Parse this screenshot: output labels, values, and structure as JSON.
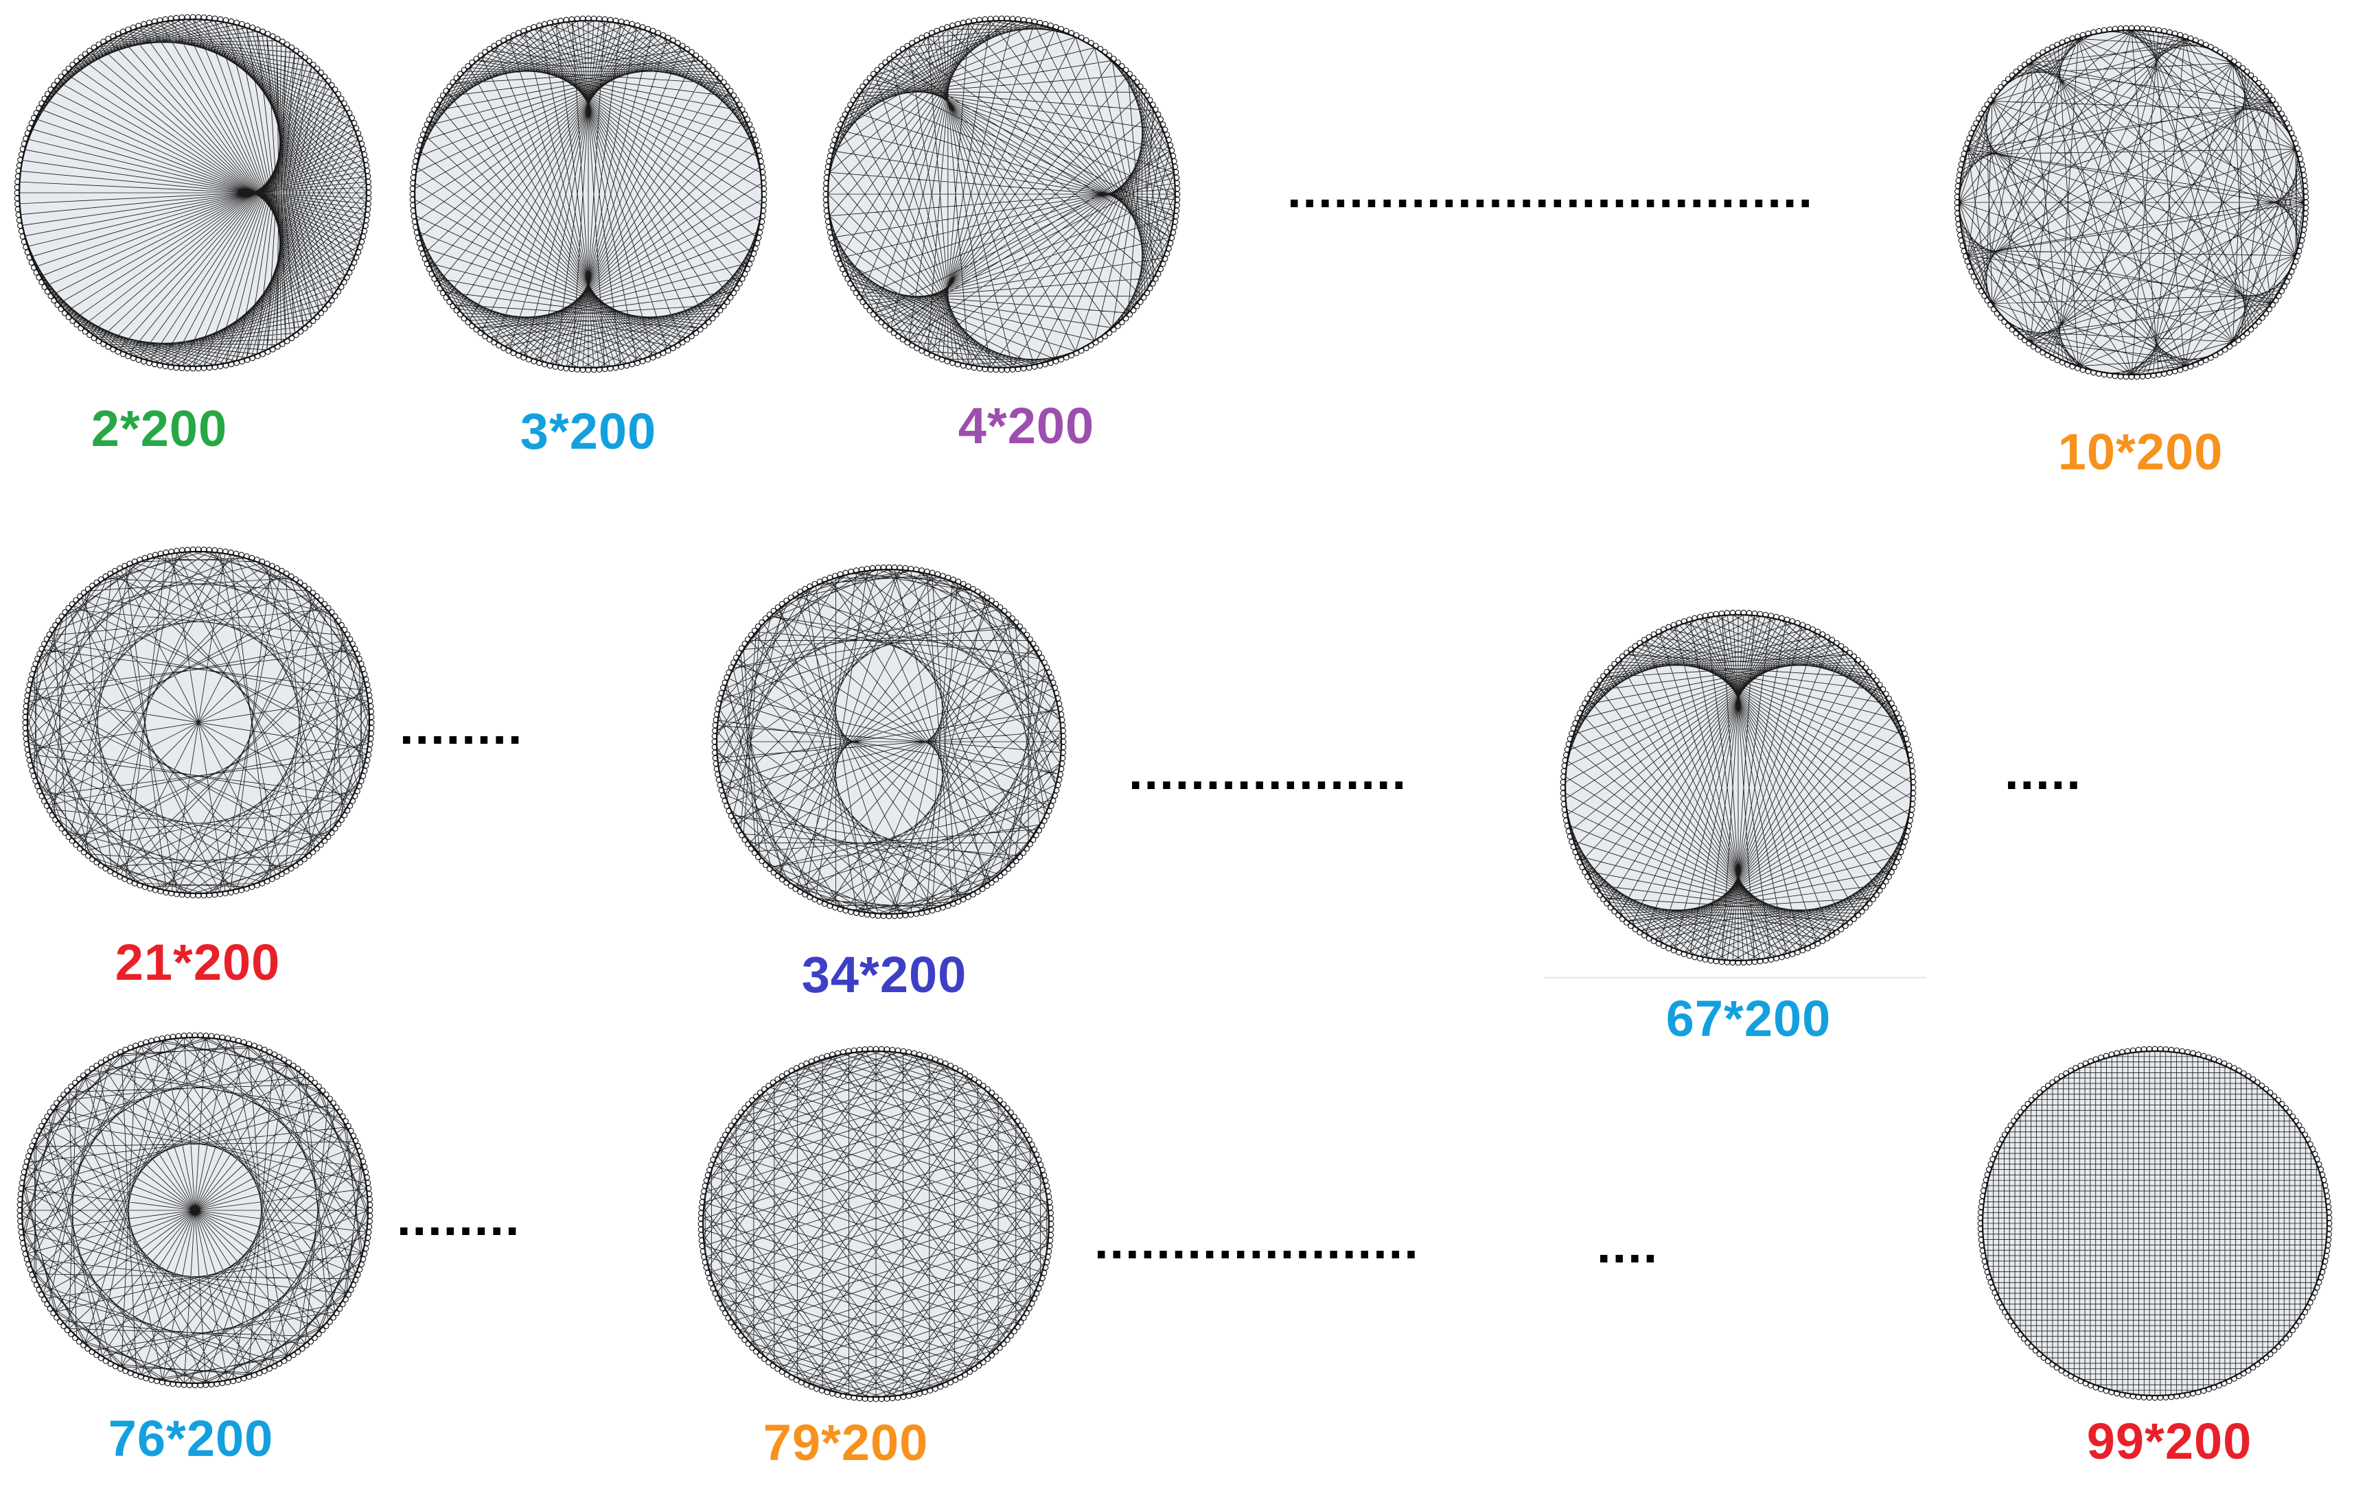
{
  "points": 200,
  "colors": {
    "chord": "#1a1a1a",
    "fill": "#e7eaee",
    "rim": "#111111"
  },
  "diagrams": [
    {
      "id": "d2",
      "multiplier": 2,
      "label": "2*200",
      "color": "#27a846",
      "pattern": "chords"
    },
    {
      "id": "d3",
      "multiplier": 3,
      "label": "3*200",
      "color": "#13a0df",
      "pattern": "chords"
    },
    {
      "id": "d4",
      "multiplier": 4,
      "label": "4*200",
      "color": "#9c4fae",
      "pattern": "chords"
    },
    {
      "id": "d10",
      "multiplier": 10,
      "label": "10*200",
      "color": "#f7921e",
      "pattern": "chords"
    },
    {
      "id": "d21",
      "multiplier": 21,
      "label": "21*200",
      "color": "#e8202a",
      "pattern": "chords"
    },
    {
      "id": "d34",
      "multiplier": 34,
      "label": "34*200",
      "color": "#3d3fc5",
      "pattern": "chords"
    },
    {
      "id": "d67",
      "multiplier": 67,
      "label": "67*200",
      "color": "#13a0df",
      "pattern": "chords"
    },
    {
      "id": "d76",
      "multiplier": 76,
      "label": "76*200",
      "color": "#13a0df",
      "pattern": "chords"
    },
    {
      "id": "d79",
      "multiplier": 79,
      "label": "79*200",
      "color": "#f7921e",
      "pattern": "chords"
    },
    {
      "id": "d99",
      "multiplier": 99,
      "label": "99*200",
      "color": "#e8202a",
      "pattern": "grid"
    }
  ],
  "ellipses": [
    {
      "id": "e1",
      "text": ".................................."
    },
    {
      "id": "e2",
      "text": "........"
    },
    {
      "id": "e3",
      "text": ".................."
    },
    {
      "id": "e4",
      "text": "....."
    },
    {
      "id": "e5",
      "text": "........"
    },
    {
      "id": "e6",
      "text": "....................."
    },
    {
      "id": "e7",
      "text": "...."
    }
  ]
}
